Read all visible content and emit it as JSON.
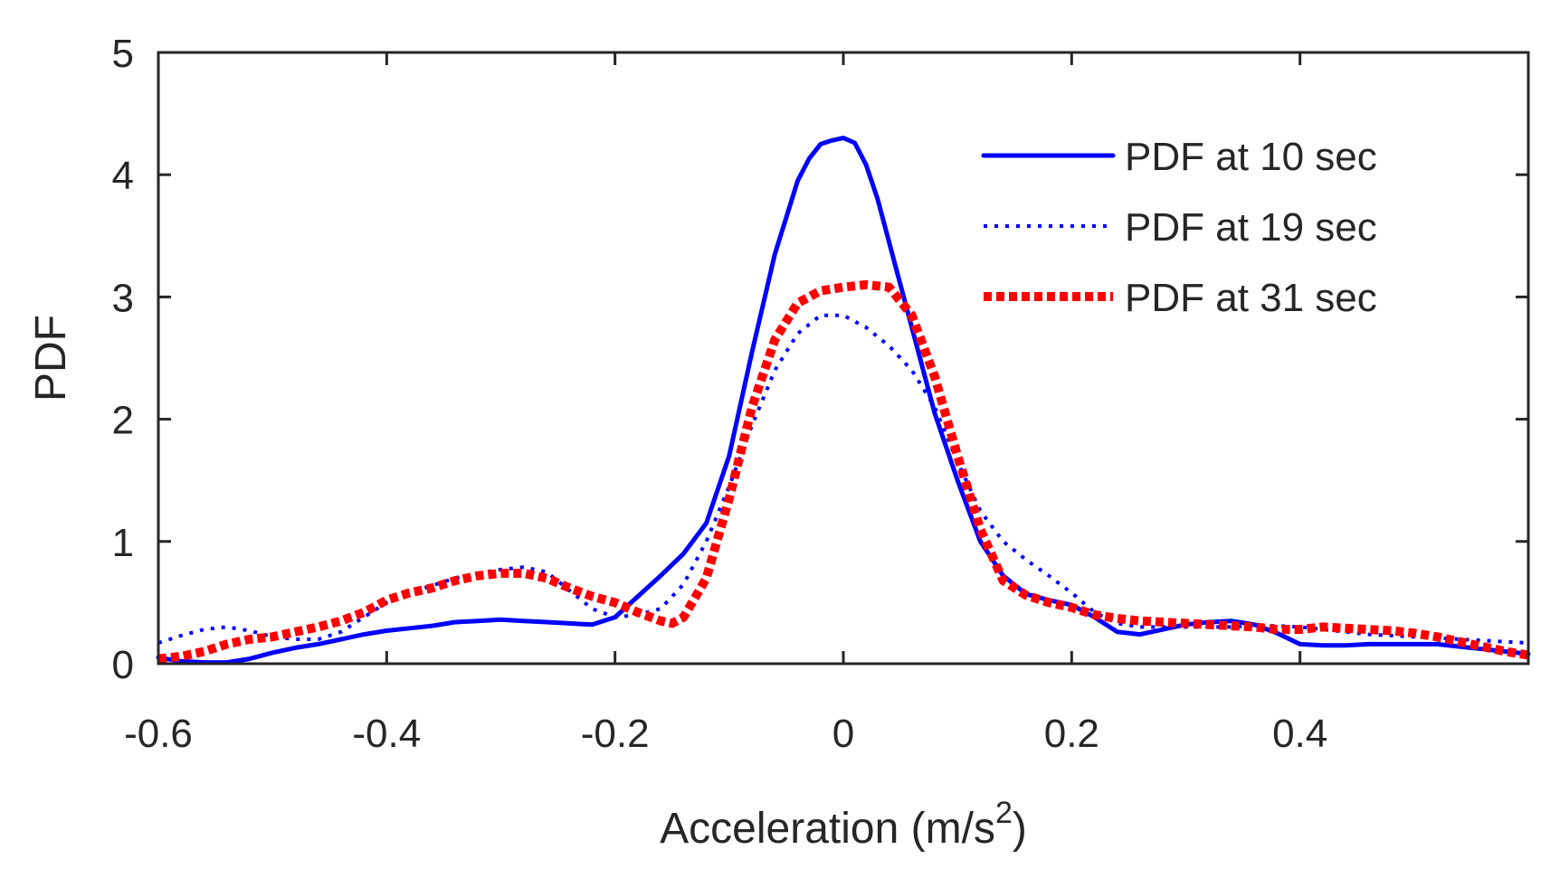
{
  "chart_data": {
    "type": "line",
    "title": "",
    "xlabel": "Acceleration (m/s",
    "xlabel_superscript": "2",
    "xlabel_close": ")",
    "ylabel": "PDF",
    "xlim": [
      -0.6,
      0.6
    ],
    "ylim": [
      0,
      5
    ],
    "xticks": [
      -0.6,
      -0.4,
      -0.2,
      0,
      0.2,
      0.4
    ],
    "xtick_labels": [
      "-0.6",
      "-0.4",
      "-0.2",
      "0",
      "0.2",
      "0.4"
    ],
    "yticks": [
      0,
      1,
      2,
      3,
      4,
      5
    ],
    "ytick_labels": [
      "0",
      "1",
      "2",
      "3",
      "4",
      "5"
    ],
    "grid": false,
    "legend_position": "top-right",
    "series": [
      {
        "name": "PDF at 10 sec",
        "color": "#0000ff",
        "style": "solid",
        "x": [
          -0.6,
          -0.58,
          -0.56,
          -0.54,
          -0.52,
          -0.5,
          -0.48,
          -0.46,
          -0.44,
          -0.42,
          -0.4,
          -0.38,
          -0.36,
          -0.34,
          -0.32,
          -0.3,
          -0.28,
          -0.26,
          -0.24,
          -0.22,
          -0.2,
          -0.18,
          -0.16,
          -0.14,
          -0.12,
          -0.1,
          -0.08,
          -0.06,
          -0.04,
          -0.03,
          -0.02,
          -0.01,
          0,
          0.01,
          0.02,
          0.03,
          0.04,
          0.06,
          0.08,
          0.1,
          0.12,
          0.14,
          0.16,
          0.18,
          0.2,
          0.22,
          0.24,
          0.26,
          0.28,
          0.3,
          0.32,
          0.34,
          0.36,
          0.38,
          0.4,
          0.42,
          0.44,
          0.46,
          0.48,
          0.5,
          0.52,
          0.54,
          0.56,
          0.58,
          0.6
        ],
        "y": [
          0.05,
          0.02,
          0.01,
          0.01,
          0.04,
          0.09,
          0.13,
          0.16,
          0.2,
          0.24,
          0.27,
          0.29,
          0.31,
          0.34,
          0.35,
          0.36,
          0.35,
          0.34,
          0.33,
          0.32,
          0.38,
          0.55,
          0.72,
          0.9,
          1.15,
          1.7,
          2.55,
          3.35,
          3.95,
          4.13,
          4.25,
          4.28,
          4.3,
          4.26,
          4.08,
          3.8,
          3.45,
          2.75,
          2.05,
          1.5,
          1.0,
          0.72,
          0.57,
          0.52,
          0.48,
          0.38,
          0.26,
          0.24,
          0.28,
          0.32,
          0.34,
          0.35,
          0.32,
          0.25,
          0.16,
          0.15,
          0.15,
          0.16,
          0.16,
          0.16,
          0.16,
          0.14,
          0.12,
          0.1,
          0.08
        ]
      },
      {
        "name": "PDF at 19 sec",
        "color": "#0000ff",
        "style": "dotted",
        "x": [
          -0.6,
          -0.58,
          -0.56,
          -0.54,
          -0.52,
          -0.5,
          -0.48,
          -0.46,
          -0.44,
          -0.42,
          -0.4,
          -0.38,
          -0.36,
          -0.34,
          -0.32,
          -0.3,
          -0.28,
          -0.26,
          -0.24,
          -0.22,
          -0.2,
          -0.18,
          -0.16,
          -0.14,
          -0.12,
          -0.1,
          -0.08,
          -0.06,
          -0.04,
          -0.02,
          0,
          0.02,
          0.04,
          0.06,
          0.08,
          0.1,
          0.12,
          0.14,
          0.16,
          0.18,
          0.2,
          0.22,
          0.24,
          0.26,
          0.28,
          0.3,
          0.32,
          0.34,
          0.36,
          0.38,
          0.4,
          0.42,
          0.44,
          0.46,
          0.48,
          0.5,
          0.52,
          0.54,
          0.56,
          0.58,
          0.6
        ],
        "y": [
          0.17,
          0.23,
          0.28,
          0.3,
          0.27,
          0.22,
          0.2,
          0.2,
          0.26,
          0.38,
          0.5,
          0.58,
          0.64,
          0.7,
          0.74,
          0.77,
          0.79,
          0.75,
          0.6,
          0.45,
          0.38,
          0.4,
          0.45,
          0.65,
          1.0,
          1.45,
          1.95,
          2.4,
          2.7,
          2.85,
          2.85,
          2.75,
          2.6,
          2.4,
          2.1,
          1.65,
          1.25,
          1.0,
          0.85,
          0.72,
          0.58,
          0.42,
          0.33,
          0.3,
          0.3,
          0.3,
          0.3,
          0.3,
          0.31,
          0.31,
          0.3,
          0.28,
          0.26,
          0.24,
          0.23,
          0.22,
          0.21,
          0.2,
          0.19,
          0.18,
          0.17
        ]
      },
      {
        "name": "PDF at 31 sec",
        "color": "#ff0000",
        "style": "dotted-thick",
        "x": [
          -0.6,
          -0.58,
          -0.56,
          -0.54,
          -0.52,
          -0.5,
          -0.48,
          -0.46,
          -0.44,
          -0.42,
          -0.4,
          -0.38,
          -0.36,
          -0.34,
          -0.32,
          -0.3,
          -0.28,
          -0.26,
          -0.24,
          -0.22,
          -0.2,
          -0.18,
          -0.16,
          -0.15,
          -0.14,
          -0.12,
          -0.1,
          -0.08,
          -0.06,
          -0.04,
          -0.02,
          0,
          0.02,
          0.04,
          0.06,
          0.08,
          0.1,
          0.12,
          0.14,
          0.16,
          0.18,
          0.2,
          0.22,
          0.24,
          0.26,
          0.28,
          0.3,
          0.32,
          0.34,
          0.36,
          0.38,
          0.4,
          0.42,
          0.44,
          0.46,
          0.48,
          0.5,
          0.52,
          0.54,
          0.56,
          0.58,
          0.6
        ],
        "y": [
          0.04,
          0.06,
          0.1,
          0.16,
          0.2,
          0.22,
          0.26,
          0.3,
          0.35,
          0.42,
          0.52,
          0.58,
          0.62,
          0.68,
          0.72,
          0.74,
          0.74,
          0.7,
          0.62,
          0.55,
          0.5,
          0.42,
          0.35,
          0.33,
          0.38,
          0.7,
          1.35,
          2.1,
          2.65,
          2.95,
          3.05,
          3.08,
          3.1,
          3.08,
          2.85,
          2.35,
          1.7,
          1.1,
          0.68,
          0.56,
          0.5,
          0.46,
          0.4,
          0.37,
          0.35,
          0.34,
          0.33,
          0.32,
          0.31,
          0.3,
          0.28,
          0.28,
          0.3,
          0.29,
          0.28,
          0.27,
          0.25,
          0.22,
          0.18,
          0.14,
          0.1,
          0.07
        ]
      }
    ]
  }
}
